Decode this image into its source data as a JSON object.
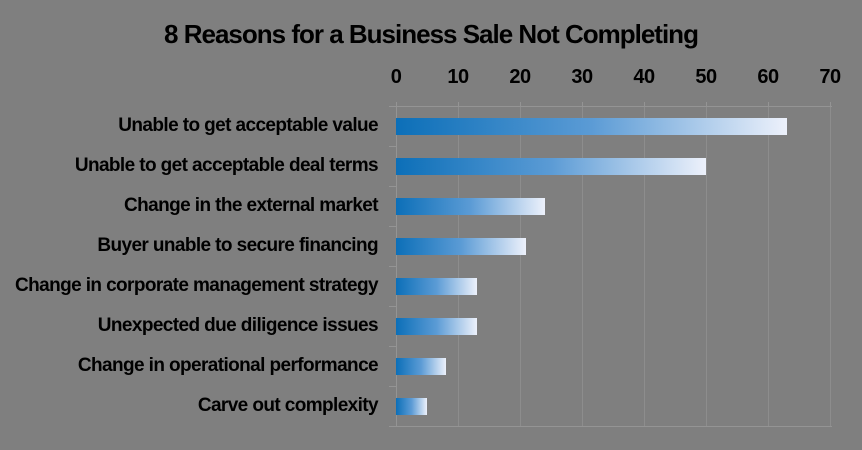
{
  "chart_data": {
    "type": "bar",
    "orientation": "horizontal",
    "title": "8 Reasons for a Business Sale Not Completing",
    "categories": [
      "Unable to get acceptable value",
      "Unable to get acceptable deal terms",
      "Change in the external market",
      "Buyer unable to secure financing",
      "Change in corporate management strategy",
      "Unexpected due diligence issues",
      "Change in operational performance",
      "Carve out complexity"
    ],
    "values": [
      63,
      50,
      24,
      21,
      13,
      13,
      8,
      5
    ],
    "xlabel": "",
    "ylabel": "",
    "x_axis": {
      "position": "top",
      "min": 0,
      "max": 70,
      "tick_interval": 10,
      "tick_labels": [
        "0",
        "10",
        "20",
        "30",
        "40",
        "50",
        "60",
        "70"
      ]
    },
    "grid": "vertical-gridlines-only",
    "legend": "none",
    "colors": {
      "background": "#7f7f7f",
      "text": "#000000",
      "gridline": "#8d8d8d",
      "axis_line": "#949494",
      "bar_gradient_start": "#0c6fb8",
      "bar_gradient_mid": "#5b9bd5",
      "bar_gradient_end": "#edf1fb"
    }
  }
}
